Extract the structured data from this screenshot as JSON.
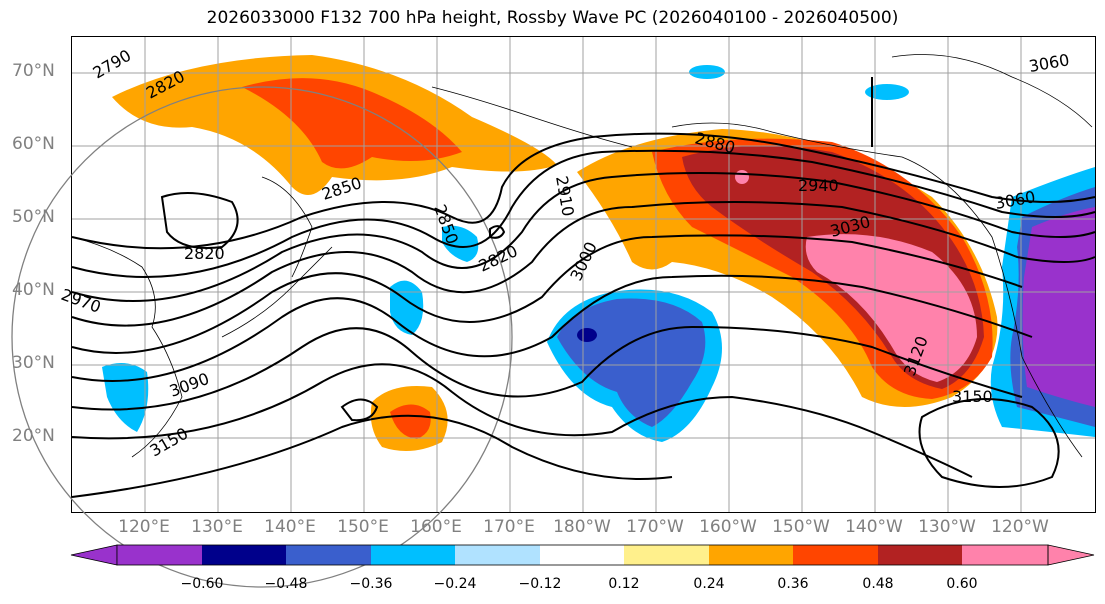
{
  "title": "2026033000 F132 700 hPa height, Rossby Wave PC (2026040100 - 2026040500)",
  "lat_labels": [
    "70°N",
    "60°N",
    "50°N",
    "40°N",
    "30°N",
    "20°N"
  ],
  "lon_labels": [
    "120°E",
    "130°E",
    "140°E",
    "150°E",
    "160°E",
    "170°E",
    "180°W",
    "170°W",
    "160°W",
    "150°W",
    "140°W",
    "130°W",
    "120°W"
  ],
  "contour_labels": [
    "2790",
    "2820",
    "2850",
    "2820",
    "2850",
    "2820",
    "2910",
    "3000",
    "2880",
    "2940",
    "3030",
    "3060",
    "3120",
    "3150",
    "3090",
    "3150",
    "2970",
    "3060"
  ],
  "colorbar": {
    "ticks": [
      "−0.60",
      "−0.48",
      "−0.36",
      "−0.24",
      "−0.12",
      "0.12",
      "0.24",
      "0.36",
      "0.48",
      "0.60"
    ],
    "colors": [
      "#9932cc",
      "#00008b",
      "#3a5fcd",
      "#00bfff",
      "#b0e2ff",
      "#ffffff",
      "#fff08c",
      "#ffa500",
      "#ff4500",
      "#b22222",
      "#ff82ab"
    ]
  }
}
